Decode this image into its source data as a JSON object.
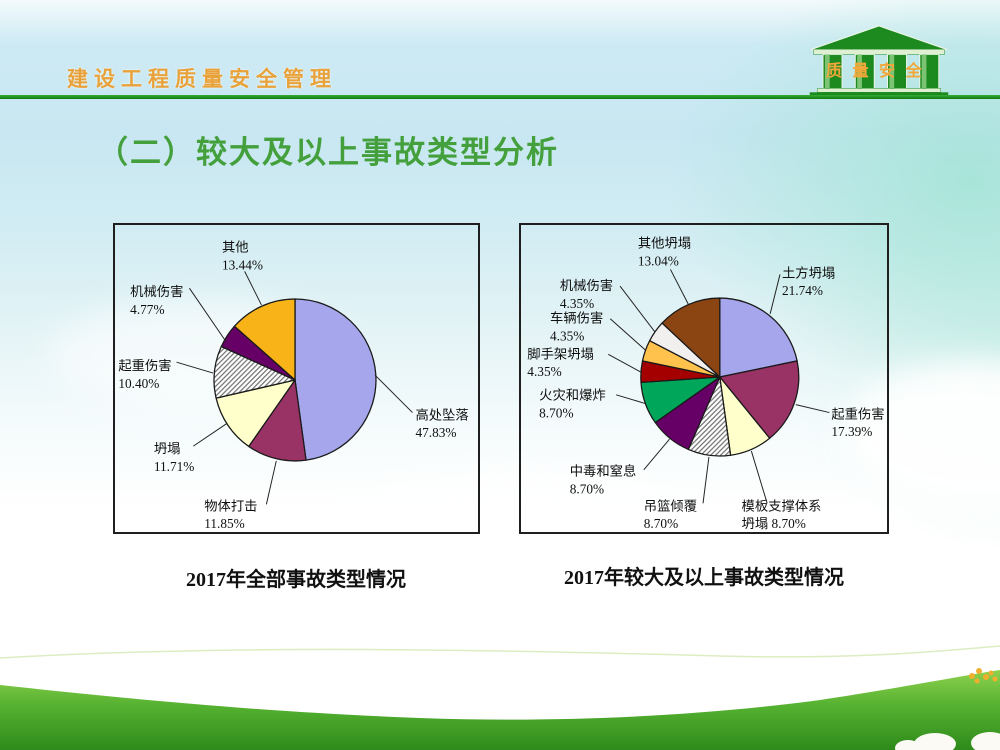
{
  "header": {
    "brand": "建设工程质量安全管理",
    "logo_text": "质量安全"
  },
  "title": "（二）较大及以上事故类型分析",
  "theme": {
    "header_text_orange": "#e9a23a",
    "divider_green": "#1e9a1e",
    "title_green": "#44a03c",
    "logo_green": "#1c8a1f"
  },
  "chart_data": [
    {
      "type": "pie",
      "title": "2017年全部事故类型情况",
      "start_angle_deg": 0,
      "direction": "clockwise",
      "legend_position": "labels-with-leader-lines",
      "slices": [
        {
          "label": "高处坠落",
          "value": 47.83,
          "pct_label": "47.83%",
          "color": "#a6a6ec"
        },
        {
          "label": "物体打击",
          "value": 11.85,
          "pct_label": "11.85%",
          "color": "#993366"
        },
        {
          "label": "坍塌",
          "value": 11.71,
          "pct_label": "11.71%",
          "color": "#ffffcc"
        },
        {
          "label": "起重伤害",
          "value": 10.4,
          "pct_label": "10.40%",
          "color": "diagonal-hatch"
        },
        {
          "label": "机械伤害",
          "value": 4.77,
          "pct_label": "4.77%",
          "color": "#660066"
        },
        {
          "label": "其他",
          "value": 13.44,
          "pct_label": "13.44%",
          "color": "#f7b318"
        }
      ]
    },
    {
      "type": "pie",
      "title": "2017年较大及以上事故类型情况",
      "start_angle_deg": 0,
      "direction": "clockwise",
      "legend_position": "labels-with-leader-lines",
      "slices": [
        {
          "label": "土方坍塌",
          "value": 21.74,
          "pct_label": "21.74%",
          "color": "#a6a6ec"
        },
        {
          "label": "起重伤害",
          "value": 17.39,
          "pct_label": "17.39%",
          "color": "#993366"
        },
        {
          "label": "模板支撑体系坍塌",
          "value": 8.7,
          "pct_label": "8.70%",
          "color": "#ffffcc",
          "label_lines": [
            "模板支撑体系",
            "坍塌 8.70%"
          ]
        },
        {
          "label": "吊篮倾覆",
          "value": 8.7,
          "pct_label": "8.70%",
          "color": "diagonal-hatch"
        },
        {
          "label": "中毒和窒息",
          "value": 8.7,
          "pct_label": "8.70%",
          "color": "#660066"
        },
        {
          "label": "火灾和爆炸",
          "value": 8.7,
          "pct_label": "8.70%",
          "color": "#00a65a"
        },
        {
          "label": "脚手架坍塌",
          "value": 4.35,
          "pct_label": "4.35%",
          "color": "#a40000"
        },
        {
          "label": "车辆伤害",
          "value": 4.35,
          "pct_label": "4.35%",
          "color": "#ffc34d"
        },
        {
          "label": "机械伤害",
          "value": 4.35,
          "pct_label": "4.35%",
          "color": "#f2efef"
        },
        {
          "label": "其他坍塌",
          "value": 13.04,
          "pct_label": "13.04%",
          "color": "#8b4513"
        }
      ]
    }
  ]
}
